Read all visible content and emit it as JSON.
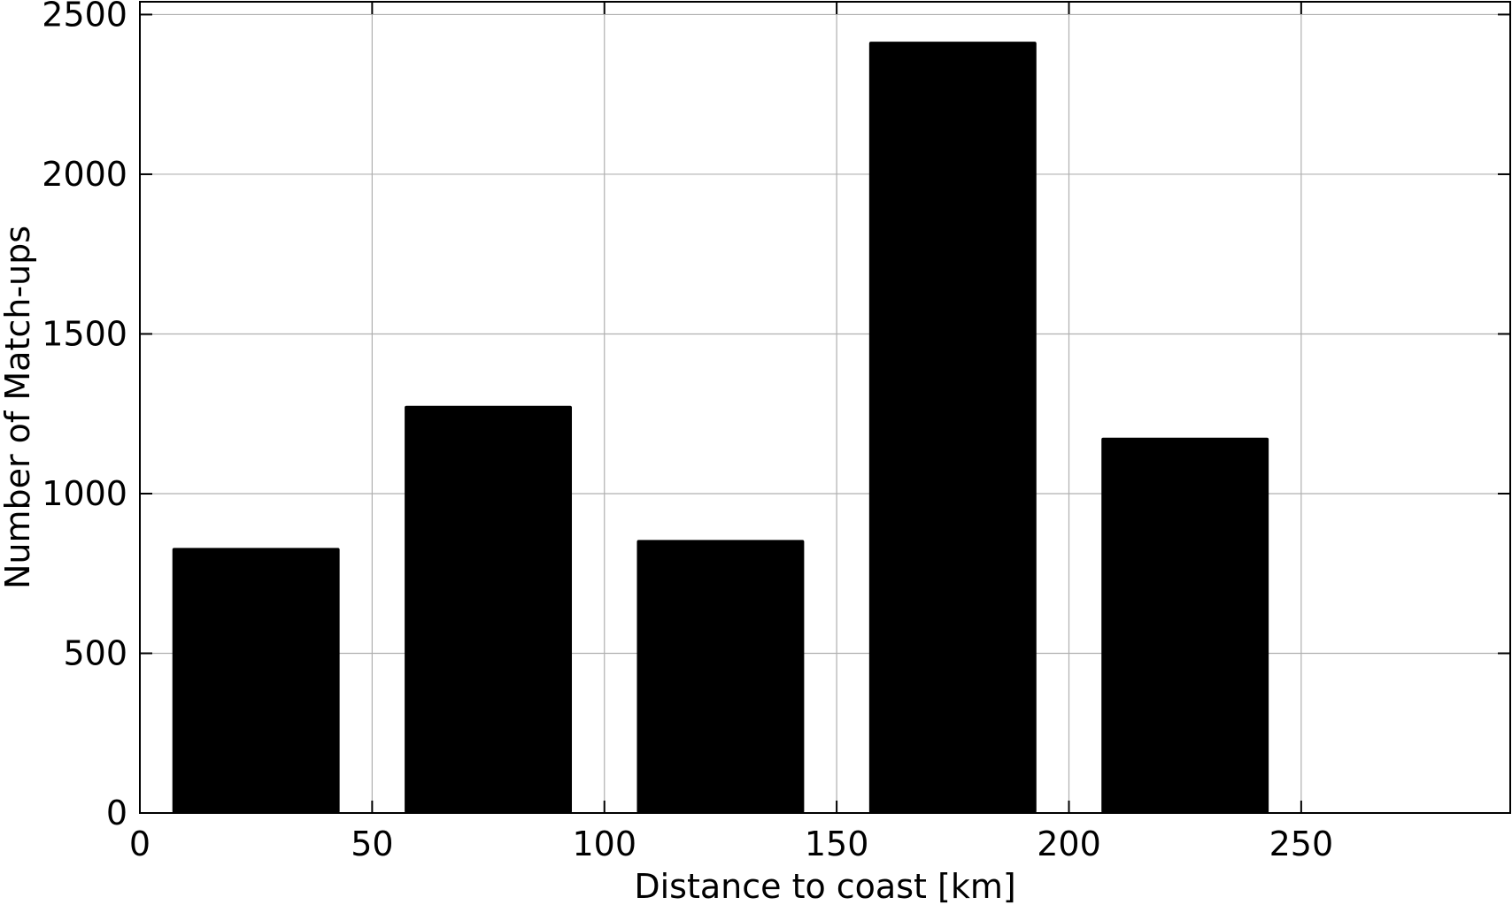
{
  "chart_data": {
    "type": "bar",
    "xlabel": "Distance to coast [km]",
    "ylabel": "Number of Match-ups",
    "xlim": [
      0,
      295
    ],
    "ylim": [
      0,
      2540
    ],
    "grid": true,
    "bars": [
      {
        "x0": 7,
        "x1": 43,
        "value": 830
      },
      {
        "x0": 57,
        "x1": 93,
        "value": 1275
      },
      {
        "x0": 107,
        "x1": 143,
        "value": 855
      },
      {
        "x0": 157,
        "x1": 193,
        "value": 2415
      },
      {
        "x0": 207,
        "x1": 243,
        "value": 1175
      }
    ],
    "xticks": [
      0,
      50,
      100,
      150,
      200,
      250
    ],
    "xtick_labels": [
      "0",
      "50",
      "100",
      "150",
      "200",
      "250"
    ],
    "yticks": [
      0,
      500,
      1000,
      1500,
      2000,
      2500
    ],
    "ytick_labels": [
      "0",
      "500",
      "1000",
      "1500",
      "2000",
      "2500"
    ]
  }
}
